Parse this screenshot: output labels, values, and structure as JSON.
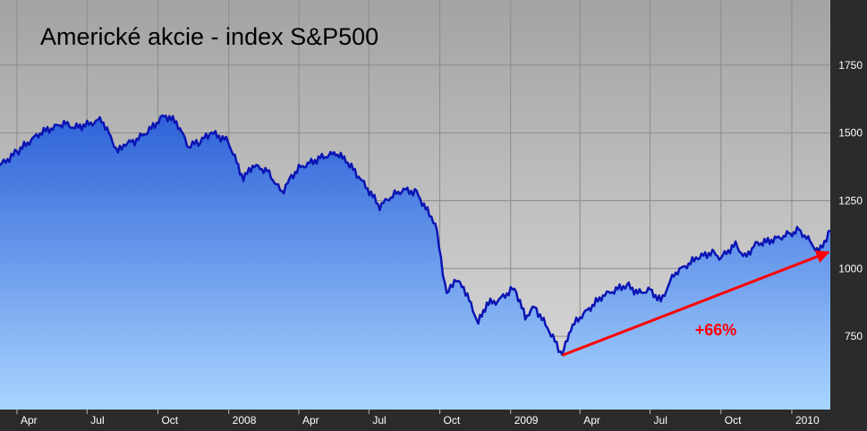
{
  "chart_data": {
    "type": "area",
    "title": "Americké akcie - index S&P500",
    "xlabel": "",
    "ylabel": "",
    "x_tick_labels": [
      "Apr",
      "Jul",
      "Oct",
      "2008",
      "Apr",
      "Jul",
      "Oct",
      "2009",
      "Apr",
      "Jul",
      "Oct",
      "2010"
    ],
    "y_tick_labels": [
      "750",
      "1000",
      "1250",
      "1500",
      "1750"
    ],
    "xlim": [
      "2007-03-10",
      "2010-02-20"
    ],
    "ylim": [
      480,
      1990
    ],
    "grid": true,
    "legend": "none",
    "series": [
      {
        "x": [
          "2007-03-10",
          "2007-04-01",
          "2007-05-01",
          "2007-06-01",
          "2007-06-15",
          "2007-07-01",
          "2007-07-20",
          "2007-08-10",
          "2007-08-20",
          "2007-09-01",
          "2007-09-20",
          "2007-10-09",
          "2007-10-25",
          "2007-11-10",
          "2007-11-25",
          "2007-12-10",
          "2007-12-31",
          "2008-01-20",
          "2008-02-01",
          "2008-02-20",
          "2008-03-10",
          "2008-03-20",
          "2008-04-01",
          "2008-05-01",
          "2008-05-19",
          "2008-06-01",
          "2008-06-20",
          "2008-07-15",
          "2008-08-01",
          "2008-08-15",
          "2008-09-01",
          "2008-09-15",
          "2008-09-25",
          "2008-10-10",
          "2008-10-20",
          "2008-11-01",
          "2008-11-20",
          "2008-12-01",
          "2008-12-15",
          "2009-01-06",
          "2009-01-20",
          "2009-02-01",
          "2009-02-20",
          "2009-03-09",
          "2009-03-20",
          "2009-04-01",
          "2009-05-01",
          "2009-06-01",
          "2009-06-15",
          "2009-07-01",
          "2009-07-15",
          "2009-08-01",
          "2009-09-01",
          "2009-09-20",
          "2009-10-01",
          "2009-10-20",
          "2009-11-01",
          "2009-11-15",
          "2009-12-01",
          "2009-12-28",
          "2010-01-10",
          "2010-01-20",
          "2010-02-05",
          "2010-02-20"
        ],
        "values": [
          1380,
          1430,
          1500,
          1535,
          1520,
          1530,
          1550,
          1430,
          1460,
          1470,
          1510,
          1565,
          1540,
          1450,
          1470,
          1500,
          1470,
          1330,
          1380,
          1360,
          1280,
          1330,
          1370,
          1410,
          1425,
          1400,
          1330,
          1230,
          1270,
          1290,
          1280,
          1210,
          1170,
          900,
          960,
          930,
          800,
          870,
          880,
          930,
          820,
          860,
          770,
          680,
          780,
          820,
          900,
          940,
          910,
          920,
          880,
          980,
          1040,
          1060,
          1040,
          1090,
          1040,
          1090,
          1100,
          1125,
          1140,
          1115,
          1060,
          1140
        ]
      }
    ],
    "annotations": [
      {
        "text": "+66%",
        "from": {
          "x": "2009-03-09",
          "y": 680
        },
        "to": {
          "x": "2010-02-20",
          "y": 1060
        },
        "color": "#ff0000"
      }
    ],
    "colors": {
      "line": "#0a14b4",
      "fill_top": "#2e62d8",
      "fill_bottom": "#a8d4ff",
      "background_top": "#a3a3a3",
      "background_bottom": "#dcdcdc",
      "axis_background": "#2b2b2b",
      "tick_text": "#ffffff",
      "title_text": "#000000",
      "arrow": "#ff0000"
    }
  }
}
